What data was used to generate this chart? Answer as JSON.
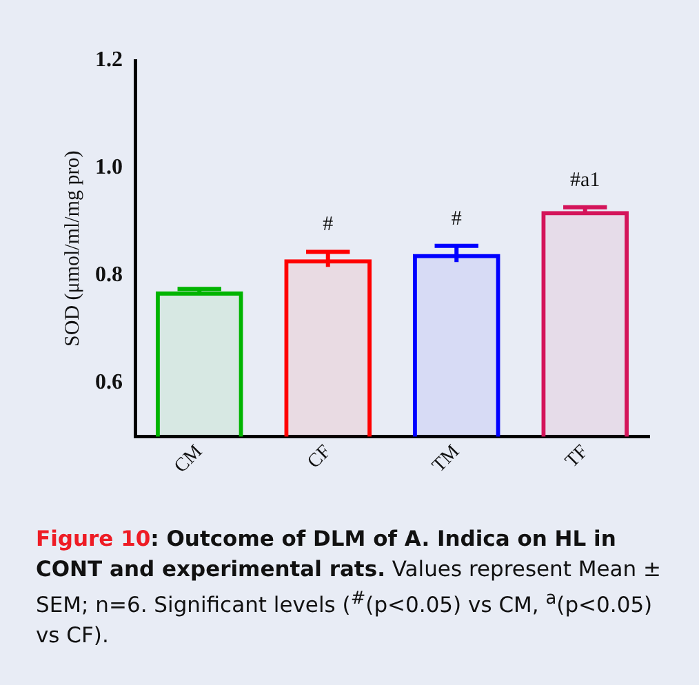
{
  "chart_data": {
    "type": "bar",
    "title": "Figure 10: Outcome of DLM of A. Indica on HL in CONT and experimental rats.",
    "ylabel": "SOD (μmol/ml/mg pro)",
    "categories": [
      "CM",
      "CF",
      "TM",
      "TF"
    ],
    "values": [
      0.77,
      0.83,
      0.84,
      0.92
    ],
    "errors": [
      0.005,
      0.014,
      0.015,
      0.007
    ],
    "colors": [
      "#00b400",
      "#ff0000",
      "#0000ff",
      "#d4145a"
    ],
    "ylim": [
      0.5,
      1.2
    ],
    "yticks": [
      0.6,
      0.8,
      {
        "value": 1.0,
        "label": "1.0"
      },
      1.2
    ],
    "grid": false,
    "annotations": [
      {
        "text": "#",
        "x": "CF",
        "y": 0.83
      },
      {
        "text": "#",
        "x": "TM",
        "y": 0.84
      },
      {
        "text": "#a1",
        "x": "TF",
        "y": 0.92
      },
      "Values represent Mean ± SEM; n=6.  Significant levels ($^{#}$(p<0.05) vs CM, $^{a}$(p<0.05) vs CF)."
    ]
  }
}
